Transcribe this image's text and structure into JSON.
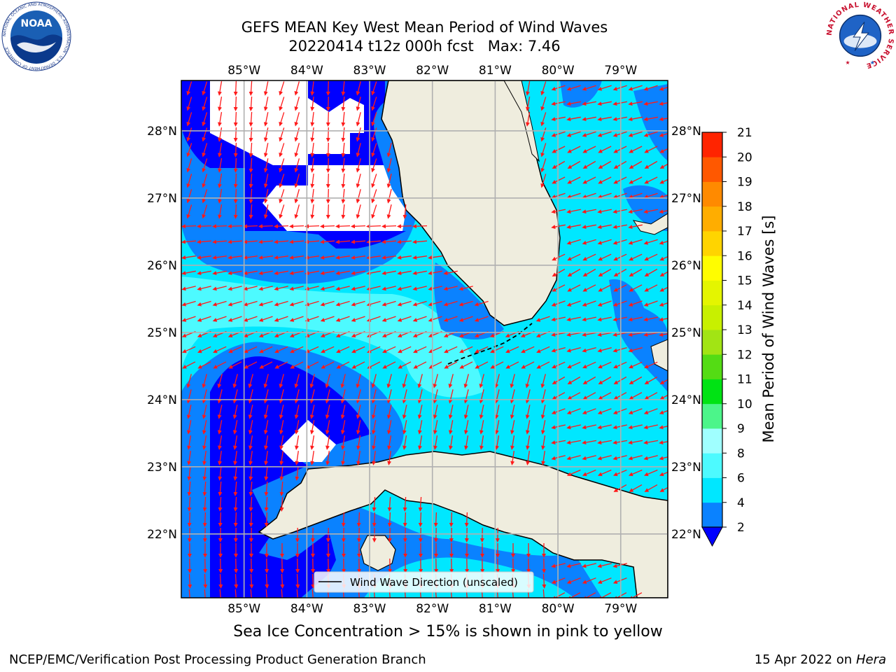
{
  "header": {
    "title_line1": "GEFS MEAN Key West Mean Period of Wind Waves",
    "title_line2": "20220414 t12z 000h fcst   Max: 7.46"
  },
  "logos": {
    "left": {
      "text": "NOAA",
      "ring_text": "NATIONAL OCEANIC AND ATMOSPHERIC ADMINISTRATION · U.S. DEPARTMENT OF COMMERCE",
      "color": "#1a5fb4"
    },
    "right": {
      "ring_text": "NATIONAL WEATHER SERVICE",
      "color": "#c8102e"
    }
  },
  "map": {
    "lon_labels": [
      "85°W",
      "84°W",
      "83°W",
      "82°W",
      "81°W",
      "80°W",
      "79°W"
    ],
    "lon_values": [
      -85,
      -84,
      -83,
      -82,
      -81,
      -80,
      -79
    ],
    "lat_labels": [
      "28°N",
      "27°N",
      "26°N",
      "25°N",
      "24°N",
      "23°N",
      "22°N"
    ],
    "lat_values": [
      28,
      27,
      26,
      25,
      24,
      23,
      22
    ],
    "extent": {
      "lon_min": -86,
      "lon_max": -78.25,
      "lat_min": 21.05,
      "lat_max": 28.75
    },
    "legend_label": "Wind Wave Direction (unscaled)",
    "arrow_color": "#ff1a1a",
    "land_color": "#efedde",
    "ocean_color": "#ffffff"
  },
  "colorbar": {
    "label": "Mean Period of Wind Waves [s]",
    "ticks": [
      "2",
      "4",
      "6",
      "8",
      "9",
      "10",
      "11",
      "12",
      "13",
      "14",
      "15",
      "16",
      "17",
      "18",
      "19",
      "20",
      "21"
    ],
    "bins": [
      {
        "from": 2,
        "to": 4,
        "color": "#0a82ff"
      },
      {
        "from": 4,
        "to": 6,
        "color": "#00e7ff"
      },
      {
        "from": 6,
        "to": 8,
        "color": "#4dfaff"
      },
      {
        "from": 8,
        "to": 9,
        "color": "#a0ffff"
      },
      {
        "from": 9,
        "to": 10,
        "color": "#4cf58a"
      },
      {
        "from": 10,
        "to": 11,
        "color": "#00e314"
      },
      {
        "from": 11,
        "to": 12,
        "color": "#54dc14"
      },
      {
        "from": 12,
        "to": 13,
        "color": "#a2e414"
      },
      {
        "from": 13,
        "to": 14,
        "color": "#c8f000"
      },
      {
        "from": 14,
        "to": 15,
        "color": "#e4f500"
      },
      {
        "from": 15,
        "to": 16,
        "color": "#fffd00"
      },
      {
        "from": 16,
        "to": 17,
        "color": "#ffd400"
      },
      {
        "from": 17,
        "to": 18,
        "color": "#ffad00"
      },
      {
        "from": 18,
        "to": 19,
        "color": "#ff8a00"
      },
      {
        "from": 19,
        "to": 20,
        "color": "#ff5800"
      },
      {
        "from": 20,
        "to": 21,
        "color": "#ff2400"
      }
    ],
    "under_color": "#0000ff"
  },
  "notes": {
    "sea_ice": "Sea Ice Concentration > 15% is shown in pink to yellow"
  },
  "footer": {
    "left": "NCEP/EMC/Verification Post Processing Product Generation Branch",
    "right_prefix": "15 Apr 2022 on ",
    "right_host": "Hera"
  }
}
